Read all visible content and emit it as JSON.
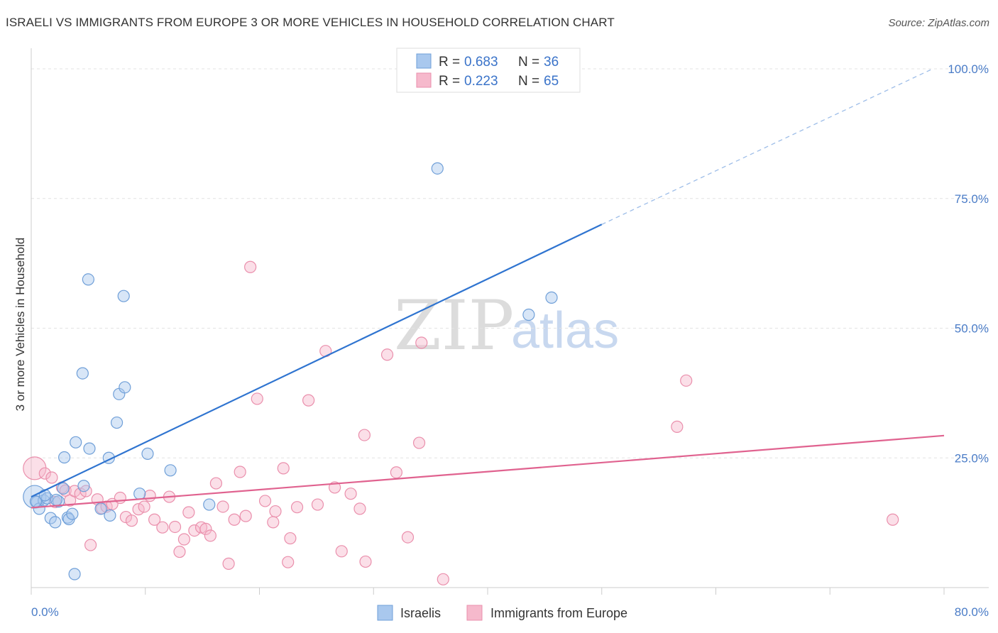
{
  "header": {
    "title": "ISRAELI VS IMMIGRANTS FROM EUROPE 3 OR MORE VEHICLES IN HOUSEHOLD CORRELATION CHART",
    "source": "Source: ZipAtlas.com"
  },
  "watermark": {
    "zip": "ZIP",
    "atlas": "atlas"
  },
  "legend": {
    "israelis": {
      "r_label": "R = ",
      "r_value": "0.683",
      "n_label": "N = ",
      "n_value": "36"
    },
    "europe": {
      "r_label": "R = ",
      "r_value": "0.223",
      "n_label": "N = ",
      "n_value": "65"
    }
  },
  "colors": {
    "blue_fill": "#a9c8ee",
    "blue_stroke": "#6f9fd8",
    "blue_line": "#2f74d0",
    "pink_fill": "#f6b9cc",
    "pink_stroke": "#ea8fac",
    "pink_line": "#e0628f",
    "grid": "#e3e3e3",
    "tick_text": "#4a7cc7"
  },
  "chart_data": {
    "type": "scatter",
    "title": "ISRAELI VS IMMIGRANTS FROM EUROPE 3 OR MORE VEHICLES IN HOUSEHOLD CORRELATION CHART",
    "xlabel": "",
    "ylabel": "3 or more Vehicles in Household",
    "xlim": [
      0,
      80
    ],
    "ylim": [
      0,
      100
    ],
    "x_tick_labels": [
      "0.0%",
      "80.0%"
    ],
    "y_ticks": [
      25,
      50,
      75,
      100
    ],
    "y_tick_labels": [
      "25.0%",
      "50.0%",
      "75.0%",
      "100.0%"
    ],
    "grid": true,
    "legend_position": "top-center",
    "series": [
      {
        "name": "Israelis",
        "r": 0.683,
        "n": 36,
        "trend": {
          "x0": 0,
          "y0": 17.5,
          "x1": 50,
          "y1": 70,
          "dashed_to_x": 79,
          "dashed_to_y": 100
        },
        "points": [
          {
            "x": 0.3,
            "y": 17.5,
            "big": true
          },
          {
            "x": 0.5,
            "y": 16.5
          },
          {
            "x": 0.7,
            "y": 15.2
          },
          {
            "x": 1.1,
            "y": 16.8
          },
          {
            "x": 1.4,
            "y": 17.2
          },
          {
            "x": 1.7,
            "y": 13.4
          },
          {
            "x": 2.1,
            "y": 12.6
          },
          {
            "x": 2.4,
            "y": 16.6
          },
          {
            "x": 2.8,
            "y": 19.1
          },
          {
            "x": 2.9,
            "y": 25.1
          },
          {
            "x": 3.2,
            "y": 13.5
          },
          {
            "x": 3.3,
            "y": 13.2
          },
          {
            "x": 3.6,
            "y": 14.2
          },
          {
            "x": 3.9,
            "y": 28.0
          },
          {
            "x": 3.8,
            "y": 2.6
          },
          {
            "x": 4.6,
            "y": 19.6
          },
          {
            "x": 4.5,
            "y": 41.3
          },
          {
            "x": 5.1,
            "y": 26.8
          },
          {
            "x": 5.0,
            "y": 59.4
          },
          {
            "x": 6.1,
            "y": 15.2
          },
          {
            "x": 6.8,
            "y": 25.0
          },
          {
            "x": 6.9,
            "y": 13.9
          },
          {
            "x": 7.5,
            "y": 31.8
          },
          {
            "x": 7.7,
            "y": 37.3
          },
          {
            "x": 8.2,
            "y": 38.6
          },
          {
            "x": 8.1,
            "y": 56.2
          },
          {
            "x": 9.5,
            "y": 18.1
          },
          {
            "x": 10.2,
            "y": 25.8
          },
          {
            "x": 12.2,
            "y": 22.6
          },
          {
            "x": 15.6,
            "y": 16.0
          },
          {
            "x": 35.6,
            "y": 80.8
          },
          {
            "x": 43.6,
            "y": 52.6
          },
          {
            "x": 45.6,
            "y": 55.9
          },
          {
            "x": 0.4,
            "y": 16.6
          },
          {
            "x": 1.2,
            "y": 17.8
          },
          {
            "x": 2.2,
            "y": 16.9
          }
        ]
      },
      {
        "name": "Immigrants from Europe",
        "r": 0.223,
        "n": 65,
        "trend": {
          "x0": 0,
          "y0": 15.4,
          "x1": 80,
          "y1": 29.3
        },
        "points": [
          {
            "x": 0.3,
            "y": 23.0,
            "big": true
          },
          {
            "x": 1.2,
            "y": 22.0
          },
          {
            "x": 1.8,
            "y": 21.2
          },
          {
            "x": 2.7,
            "y": 19.3
          },
          {
            "x": 3.0,
            "y": 18.7
          },
          {
            "x": 3.4,
            "y": 16.8
          },
          {
            "x": 3.8,
            "y": 18.6
          },
          {
            "x": 4.3,
            "y": 18.1
          },
          {
            "x": 4.8,
            "y": 18.6
          },
          {
            "x": 5.2,
            "y": 8.2
          },
          {
            "x": 5.8,
            "y": 17.0
          },
          {
            "x": 6.2,
            "y": 15.3
          },
          {
            "x": 6.6,
            "y": 15.6
          },
          {
            "x": 7.1,
            "y": 16.1
          },
          {
            "x": 7.8,
            "y": 17.3
          },
          {
            "x": 8.3,
            "y": 13.6
          },
          {
            "x": 8.8,
            "y": 12.9
          },
          {
            "x": 9.4,
            "y": 15.1
          },
          {
            "x": 9.9,
            "y": 15.6
          },
          {
            "x": 10.4,
            "y": 17.7
          },
          {
            "x": 10.8,
            "y": 13.1
          },
          {
            "x": 11.5,
            "y": 11.6
          },
          {
            "x": 12.1,
            "y": 17.5
          },
          {
            "x": 12.6,
            "y": 11.7
          },
          {
            "x": 13.0,
            "y": 6.9
          },
          {
            "x": 13.4,
            "y": 9.3
          },
          {
            "x": 13.8,
            "y": 14.5
          },
          {
            "x": 14.3,
            "y": 11.0
          },
          {
            "x": 14.9,
            "y": 11.6
          },
          {
            "x": 15.3,
            "y": 11.3
          },
          {
            "x": 15.7,
            "y": 10.0
          },
          {
            "x": 16.2,
            "y": 20.1
          },
          {
            "x": 16.8,
            "y": 15.6
          },
          {
            "x": 17.3,
            "y": 4.6
          },
          {
            "x": 17.8,
            "y": 13.1
          },
          {
            "x": 18.3,
            "y": 22.3
          },
          {
            "x": 18.8,
            "y": 13.8
          },
          {
            "x": 19.2,
            "y": 61.8
          },
          {
            "x": 19.8,
            "y": 36.4
          },
          {
            "x": 20.5,
            "y": 16.7
          },
          {
            "x": 21.2,
            "y": 12.6
          },
          {
            "x": 21.4,
            "y": 14.7
          },
          {
            "x": 22.1,
            "y": 23.0
          },
          {
            "x": 22.5,
            "y": 4.9
          },
          {
            "x": 22.7,
            "y": 9.5
          },
          {
            "x": 23.3,
            "y": 15.5
          },
          {
            "x": 24.3,
            "y": 36.1
          },
          {
            "x": 25.1,
            "y": 16.0
          },
          {
            "x": 25.8,
            "y": 45.6
          },
          {
            "x": 26.6,
            "y": 19.3
          },
          {
            "x": 27.2,
            "y": 7.0
          },
          {
            "x": 28.0,
            "y": 18.1
          },
          {
            "x": 28.8,
            "y": 15.2
          },
          {
            "x": 29.2,
            "y": 29.4
          },
          {
            "x": 29.3,
            "y": 5.0
          },
          {
            "x": 31.2,
            "y": 44.9
          },
          {
            "x": 32.0,
            "y": 22.2
          },
          {
            "x": 33.0,
            "y": 9.7
          },
          {
            "x": 34.0,
            "y": 27.9
          },
          {
            "x": 34.2,
            "y": 47.2
          },
          {
            "x": 36.1,
            "y": 1.6
          },
          {
            "x": 56.6,
            "y": 31.0
          },
          {
            "x": 57.4,
            "y": 39.9
          },
          {
            "x": 75.5,
            "y": 13.1
          },
          {
            "x": 2.1,
            "y": 16.5
          }
        ]
      }
    ]
  },
  "bottom_legend": {
    "israelis": "Israelis",
    "europe": "Immigrants from Europe"
  }
}
